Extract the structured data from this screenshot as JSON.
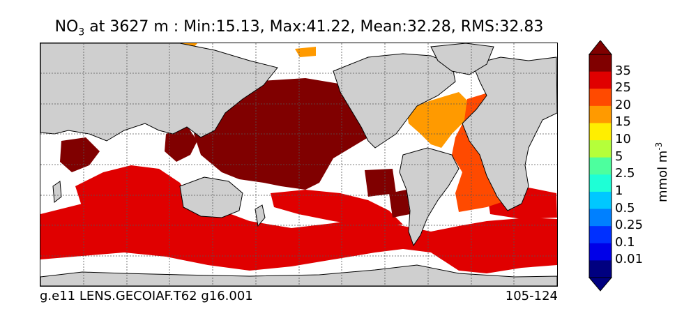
{
  "title": {
    "species_main": "NO",
    "species_sub": "3",
    "text": " at 3627 m : Min:15.13, Max:41.22, Mean:32.28, RMS:32.83"
  },
  "footer": {
    "run_id": "g.e11 LENS.GECOIAF.T62 g16.001",
    "years": "105-124"
  },
  "colorbar": {
    "labels": [
      "35",
      "25",
      "20",
      "15",
      "10",
      "5",
      "2.5",
      "1",
      "0.5",
      "0.25",
      "0.1",
      "0.01"
    ],
    "unit_main": "mmol m",
    "unit_sup": "-3",
    "colors": [
      "#800000",
      "#e00000",
      "#ff4a00",
      "#ff9a00",
      "#ffee00",
      "#b5ff3a",
      "#4dff9e",
      "#1effd6",
      "#00c8ff",
      "#0080ff",
      "#0030ff",
      "#0000e8",
      "#000080"
    ]
  },
  "palette": {
    "land": "#cfcfcf",
    "no_data": "#ffffff",
    "coast": "#000000",
    "grid": "#555555"
  }
}
